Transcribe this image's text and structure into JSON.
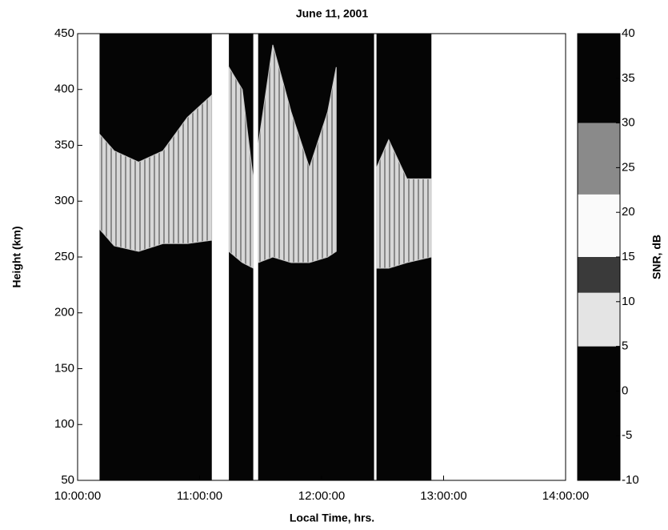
{
  "chart_data": {
    "type": "heatmap",
    "title": "June 11, 2001",
    "xlabel": "Local Time, hrs.",
    "ylabel": "Height (km)",
    "xlim": [
      10,
      14
    ],
    "xticks": [
      {
        "value": 10,
        "label": "10:00:00"
      },
      {
        "value": 11,
        "label": "11:00:00"
      },
      {
        "value": 12,
        "label": "12:00:00"
      },
      {
        "value": 13,
        "label": "13:00:00"
      },
      {
        "value": 14,
        "label": "14:00:00"
      }
    ],
    "ylim": [
      50,
      450
    ],
    "yticks": [
      50,
      100,
      150,
      200,
      250,
      300,
      350,
      400,
      450
    ],
    "coverage": [
      [
        10.18,
        11.1
      ],
      [
        11.24,
        11.44
      ],
      [
        11.48,
        12.43
      ],
      [
        12.45,
        12.9
      ]
    ],
    "coverage_color": "#050505",
    "layer": {
      "color": "#dcdcdc",
      "x": [
        10.18,
        10.3,
        10.5,
        10.7,
        10.9,
        11.1,
        null,
        11.24,
        11.35,
        11.44,
        null,
        11.48,
        11.6,
        11.75,
        11.9,
        12.05,
        12.12,
        null,
        12.45,
        12.55,
        12.7,
        12.9
      ],
      "bottom": [
        275,
        260,
        255,
        262,
        262,
        265,
        null,
        255,
        245,
        240,
        null,
        245,
        250,
        245,
        245,
        250,
        255,
        null,
        240,
        240,
        245,
        250
      ],
      "top": [
        360,
        345,
        335,
        345,
        375,
        395,
        null,
        420,
        400,
        320,
        null,
        350,
        440,
        380,
        330,
        380,
        420,
        null,
        330,
        355,
        320,
        320
      ]
    },
    "colorbar": {
      "label": "SNR, dB",
      "clim": [
        -10,
        40
      ],
      "ticks": [
        -10,
        -5,
        0,
        5,
        10,
        15,
        20,
        25,
        30,
        35,
        40
      ],
      "bands": [
        {
          "from": -10,
          "to": 5,
          "color": "#050505"
        },
        {
          "from": 5,
          "to": 11,
          "color": "#e4e4e4"
        },
        {
          "from": 11,
          "to": 15,
          "color": "#3a3a3a"
        },
        {
          "from": 15,
          "to": 22,
          "color": "#fafafa"
        },
        {
          "from": 22,
          "to": 30,
          "color": "#8a8a8a"
        },
        {
          "from": 30,
          "to": 40,
          "color": "#050505"
        }
      ]
    }
  }
}
